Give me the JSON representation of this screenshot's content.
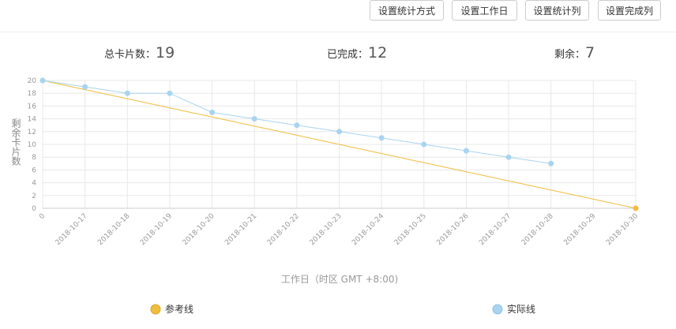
{
  "buttons": [
    "设置统计方式",
    "设置工作日",
    "设置统计列",
    "设置完成列"
  ],
  "stats": [
    {
      "label": "总卡片数：",
      "value": 19
    },
    {
      "label": "已完成：",
      "value": 12
    },
    {
      "label": "剩余：",
      "value": 7
    }
  ],
  "chart_data": {
    "type": "line",
    "categories": [
      "0",
      "2018-10-17",
      "2018-10-18",
      "2018-10-19",
      "2018-10-20",
      "2018-10-21",
      "2018-10-22",
      "2018-10-23",
      "2018-10-24",
      "2018-10-25",
      "2018-10-26",
      "2018-10-27",
      "2018-10-28",
      "2018-10-29",
      "2018-10-30"
    ],
    "series": [
      {
        "name": "参考线",
        "color": "#f0bd3c",
        "values": [
          20,
          18.57,
          17.14,
          15.71,
          14.29,
          12.86,
          11.43,
          10,
          8.57,
          7.14,
          5.71,
          4.29,
          2.86,
          1.43,
          0
        ]
      },
      {
        "name": "实际线",
        "color": "#a8d4f0",
        "values": [
          20,
          19,
          18,
          18,
          15,
          14,
          13,
          12,
          11,
          10,
          9,
          8,
          7,
          null,
          null
        ]
      }
    ],
    "ylim": [
      0,
      20
    ],
    "yticks": [
      0,
      2,
      4,
      6,
      8,
      10,
      12,
      14,
      16,
      18,
      20
    ],
    "y_label": "剩余卡片数",
    "x_label": "工作日（时区 GMT +8:00)",
    "grid": true
  }
}
